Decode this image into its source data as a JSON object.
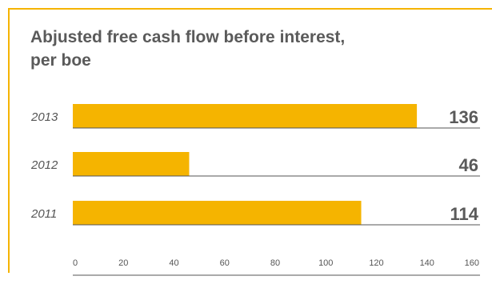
{
  "chart_data": {
    "type": "bar",
    "orientation": "horizontal",
    "title_lines": [
      "Abjusted free cash flow before interest,",
      "per boe"
    ],
    "categories": [
      "2013",
      "2012",
      "2011"
    ],
    "values": [
      136,
      46,
      114
    ],
    "xlim": [
      0,
      160
    ],
    "ticks": [
      "0",
      "20",
      "40",
      "60",
      "80",
      "100",
      "120",
      "140",
      "160"
    ],
    "grid": false,
    "colors": {
      "bar": "#f5b400",
      "frame": "#f5b400",
      "axis": "#555555",
      "text": "#5a5a5a"
    }
  }
}
